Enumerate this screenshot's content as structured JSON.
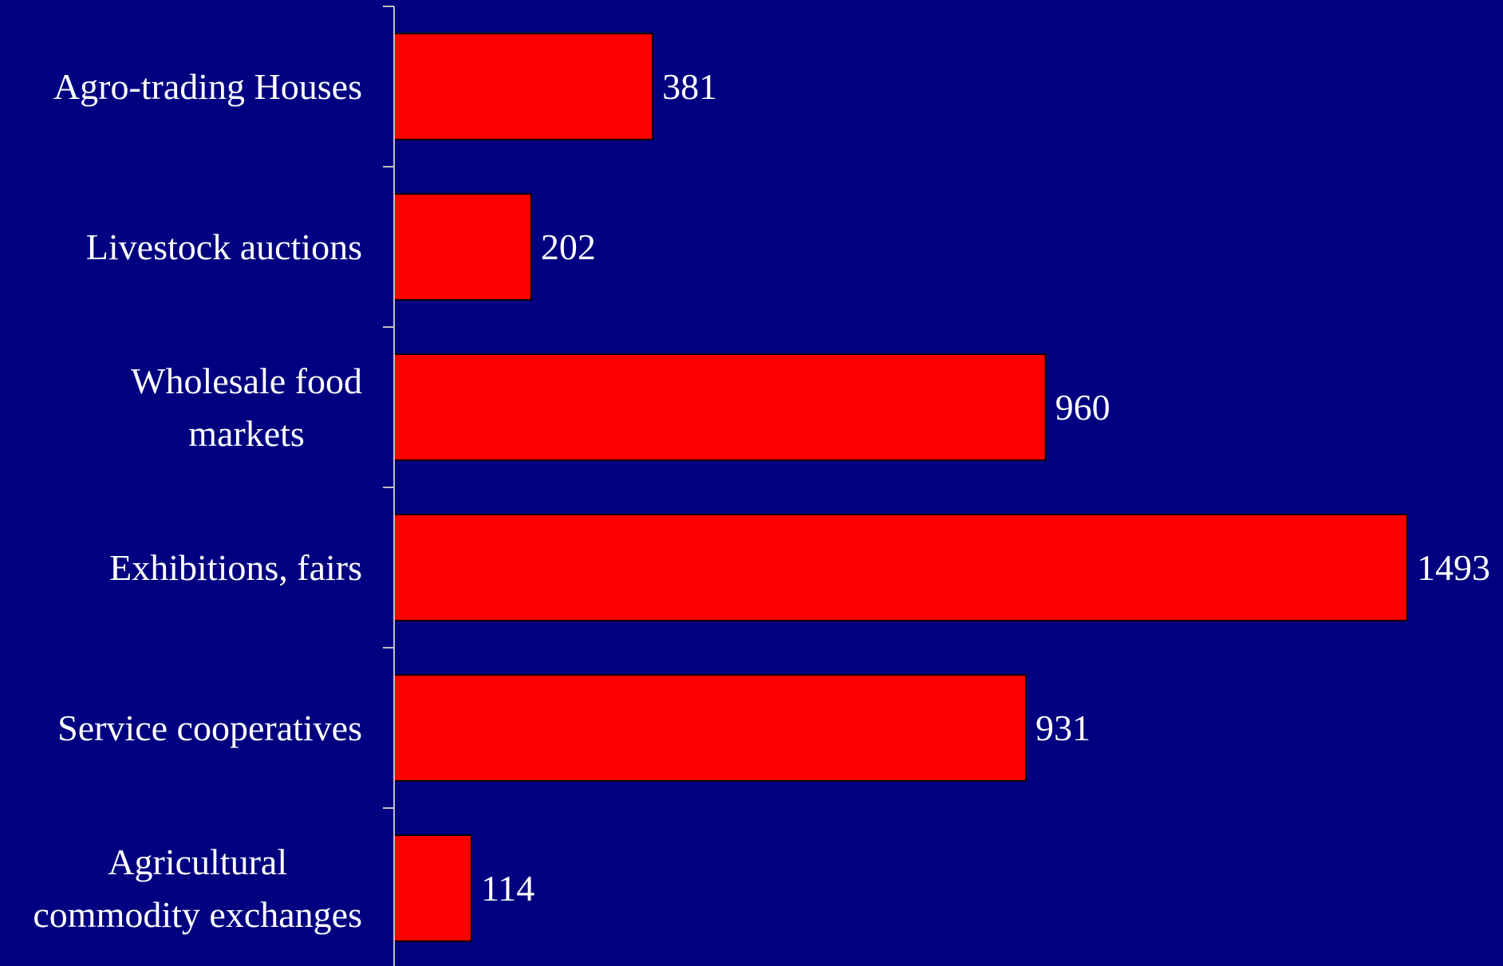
{
  "chart_data": {
    "type": "bar",
    "orientation": "horizontal",
    "categories": [
      "Agro-trading Houses",
      "Livestock auctions",
      "Wholesale food markets",
      "Exhibitions, fairs",
      "Service cooperatives",
      "Agricultural commodity exchanges"
    ],
    "category_lines": [
      [
        "Agro-trading Houses"
      ],
      [
        "Livestock auctions"
      ],
      [
        "Wholesale food",
        "markets"
      ],
      [
        "Exhibitions, fairs"
      ],
      [
        "Service cooperatives"
      ],
      [
        "Agricultural",
        "commodity exchanges"
      ]
    ],
    "values": [
      381,
      202,
      960,
      1493,
      931,
      114
    ],
    "data_labels": [
      "381",
      "202",
      "960",
      "1493",
      "931",
      "114"
    ],
    "title": "",
    "xlabel": "",
    "ylabel": "",
    "xlim": [
      0,
      1520
    ],
    "grid": false,
    "legend": "none",
    "colors": {
      "background": "#000080",
      "bar": "#ff0000",
      "bar_border": "#000000",
      "axis": "#c0c0c0",
      "text": "#ffffff"
    }
  }
}
